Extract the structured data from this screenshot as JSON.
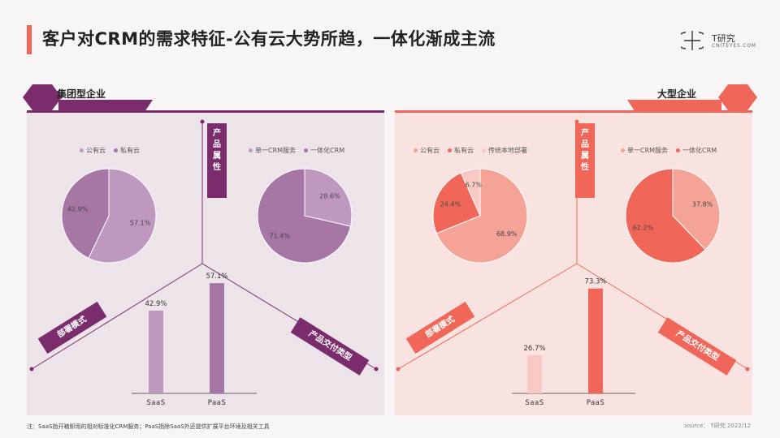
{
  "title": "客户对CRM的需求特征-公有云大势所趋，一体化渐成主流",
  "logo": {
    "cn": "T研究",
    "en": "CNITEYES.COM"
  },
  "colors": {
    "accent": "#f0675a",
    "purple_dark": "#7a2c6c",
    "purple_mid": "#a676a5",
    "purple_light": "#bf98bf",
    "coral": "#f0675a",
    "coral_light": "#f4a396",
    "coral_pale": "#f9c9c3"
  },
  "left": {
    "segment": "集团型企业",
    "center_tag": "产品属性",
    "deploy_tag": "部署模式",
    "delivery_tag": "产品交付类型"
  },
  "right": {
    "segment": "大型企业",
    "center_tag": "产品属性",
    "deploy_tag": "部署模式",
    "delivery_tag": "产品交付类型"
  },
  "chart_data": [
    {
      "type": "pie",
      "panel": "集团型企业",
      "legend": [
        "公有云",
        "私有云"
      ],
      "values": [
        57.1,
        42.9
      ],
      "labels": [
        "57.1%",
        "42.9%"
      ],
      "colors": [
        "#bf98bf",
        "#a676a5"
      ]
    },
    {
      "type": "pie",
      "panel": "集团型企业",
      "legend": [
        "单一CRM服务",
        "一体化CRM"
      ],
      "values": [
        28.6,
        71.4
      ],
      "labels": [
        "28.6%",
        "71.4%"
      ],
      "colors": [
        "#bf98bf",
        "#a676a5"
      ]
    },
    {
      "type": "bar",
      "panel": "集团型企业",
      "categories": [
        "SaaS",
        "PaaS"
      ],
      "values": [
        42.9,
        57.1
      ],
      "labels": [
        "42.9%",
        "57.1%"
      ],
      "colors": [
        "#bf98bf",
        "#a676a5"
      ],
      "ylim": [
        0,
        80
      ]
    },
    {
      "type": "pie",
      "panel": "大型企业",
      "legend": [
        "公有云",
        "私有云",
        "传统本地部署"
      ],
      "values": [
        68.9,
        24.4,
        6.7
      ],
      "labels": [
        "68.9%",
        "24.4%",
        "6.7%"
      ],
      "colors": [
        "#f4a396",
        "#f0675a",
        "#f9c9c3"
      ]
    },
    {
      "type": "pie",
      "panel": "大型企业",
      "legend": [
        "单一CRM服务",
        "一体化CRM"
      ],
      "values": [
        37.8,
        62.2
      ],
      "labels": [
        "37.8%",
        "62.2%"
      ],
      "colors": [
        "#f4a396",
        "#f0675a"
      ]
    },
    {
      "type": "bar",
      "panel": "大型企业",
      "categories": [
        "SaaS",
        "PaaS"
      ],
      "values": [
        26.7,
        73.3
      ],
      "labels": [
        "26.7%",
        "73.3%"
      ],
      "colors": [
        "#f9c9c3",
        "#f0675a"
      ],
      "ylim": [
        0,
        80
      ]
    }
  ],
  "footnote": "注：SaaS指开箱即用的相对标准化CRM服务；PaaS指除SaaS外还提供扩展平台环境及相关工具",
  "source": "source： T研究 2022/12"
}
